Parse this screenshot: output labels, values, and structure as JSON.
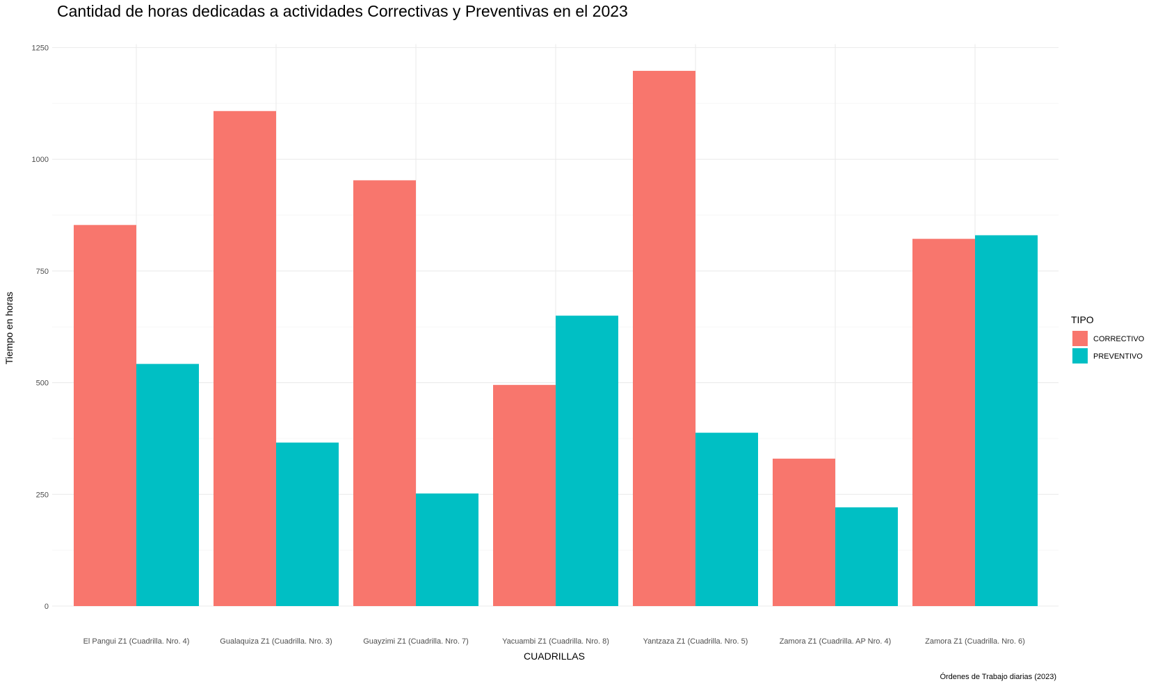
{
  "chart_data": {
    "type": "bar",
    "title": "Cantidad de horas dedicadas a actividades Correctivas y Preventivas en el 2023",
    "xlabel": "CUADRILLAS",
    "ylabel": "Tiempo en horas",
    "caption": "Órdenes de Trabajo diarias (2023)",
    "categories": [
      "El Pangui Z1 (Cuadrilla. Nro. 4)",
      "Gualaquiza Z1 (Cuadrilla. Nro. 3)",
      "Guayzimi Z1 (Cuadrilla. Nro. 7)",
      "Yacuambi Z1 (Cuadrilla. Nro. 8)",
      "Yantzaza Z1 (Cuadrilla. Nro. 5)",
      "Zamora Z1 (Cuadrilla. AP Nro. 4)",
      "Zamora Z1 (Cuadrilla. Nro. 6)"
    ],
    "series": [
      {
        "name": "CORRECTIVO",
        "color": "#F8766D",
        "values": [
          853,
          1108,
          953,
          495,
          1198,
          330,
          822
        ]
      },
      {
        "name": "PREVENTIVO",
        "color": "#00BFC4",
        "values": [
          542,
          366,
          252,
          650,
          388,
          221,
          830
        ]
      }
    ],
    "ylim": [
      0,
      1250
    ],
    "yticks": [
      0,
      250,
      500,
      750,
      1000,
      1250
    ],
    "legend": {
      "title": "TIPO",
      "position": "right"
    },
    "grid": true
  }
}
